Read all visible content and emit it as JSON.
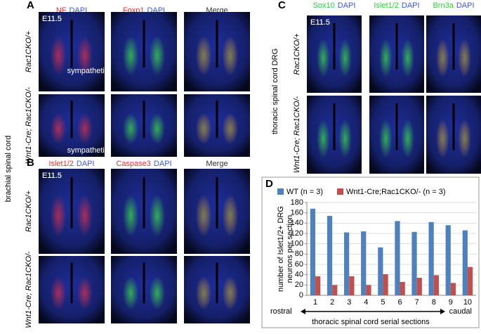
{
  "figure": {
    "side_label": "brachial spinal cord",
    "panel_a": {
      "letter": "A",
      "headers": [
        [
          "NF",
          "DAPI"
        ],
        [
          "Foxp1",
          "DAPI"
        ],
        [
          "Merge"
        ]
      ],
      "stage": "E11.5",
      "rows": [
        "Rac1CKO/+",
        "Wnt1-Cre; Rac1CKO/-"
      ],
      "annotations": [
        "sympathetic",
        "sympathetic"
      ]
    },
    "panel_b": {
      "letter": "B",
      "headers": [
        [
          "Islet1/2",
          "DAPI"
        ],
        [
          "Caspase3",
          "DAPI"
        ],
        [
          "Merge"
        ]
      ],
      "stage": "E11.5",
      "rows": [
        "Rac1CKO/+",
        "Wnt1-Cre; Rac1CKO/-"
      ]
    },
    "panel_c": {
      "letter": "C",
      "side_label": "thoracic spinal cord DRG",
      "headers": [
        [
          "Sox10",
          "DAPI"
        ],
        [
          "Islet1/2",
          "DAPI"
        ],
        [
          "Brn3a",
          "DAPI"
        ]
      ],
      "stage": "E11.5",
      "rows": [
        "Rac1CKO/+",
        "Wnt1-Cre; Rac1CKO/-"
      ]
    },
    "panel_d": {
      "letter": "D"
    }
  },
  "chart_data": {
    "type": "bar",
    "ylabel": [
      "number of Islet1/2+ DRG",
      "neurons per section"
    ],
    "xlabel": "thoracic spinal cord serial sections",
    "x_start": "rostral",
    "x_end": "caudal",
    "categories": [
      "1",
      "2",
      "3",
      "4",
      "5",
      "6",
      "7",
      "8",
      "9",
      "10"
    ],
    "series": [
      {
        "name": "WT (n = 3)",
        "color": "#4f81bd",
        "values": [
          168,
          154,
          122,
          124,
          93,
          144,
          123,
          142,
          136,
          126
        ]
      },
      {
        "name": "Wnt1-Cre;Rac1CKO/- (n = 3)",
        "color": "#c0504d",
        "values": [
          37,
          20,
          37,
          20,
          41,
          26,
          34,
          39,
          24,
          55
        ]
      }
    ],
    "ylim": [
      0,
      180
    ],
    "yticks": [
      0,
      20,
      40,
      60,
      80,
      100,
      120,
      140,
      160,
      180
    ],
    "grid": true
  }
}
